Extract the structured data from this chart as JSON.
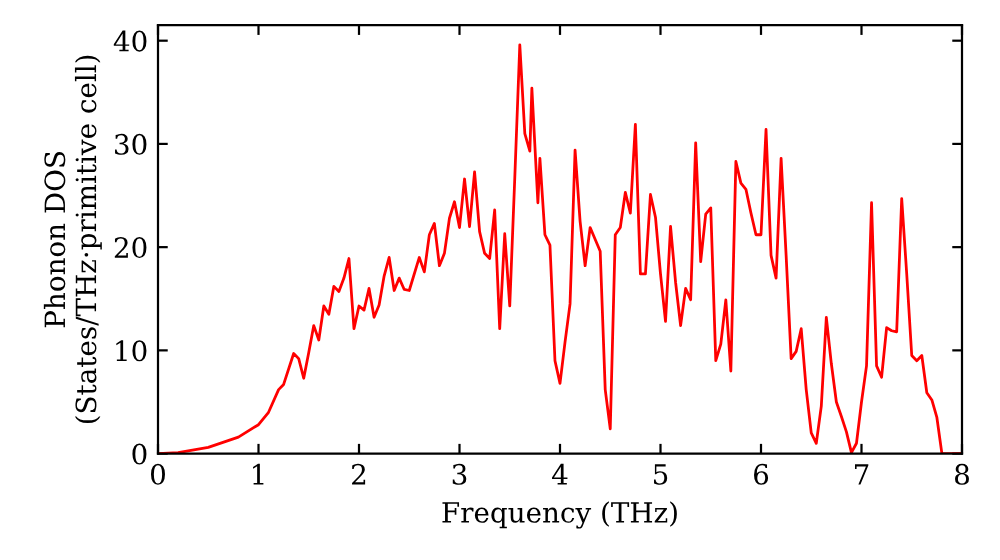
{
  "chart_data": {
    "type": "line",
    "xlabel": "Frequency (THz)",
    "ylabel": "Phonon DOS\n(States/THz·primitive cell)",
    "x": [
      0,
      0.2,
      0.5,
      0.8,
      1.0,
      1.1,
      1.2,
      1.25,
      1.35,
      1.4,
      1.45,
      1.5,
      1.55,
      1.6,
      1.65,
      1.7,
      1.75,
      1.8,
      1.85,
      1.9,
      1.95,
      2.0,
      2.05,
      2.1,
      2.15,
      2.2,
      2.25,
      2.3,
      2.35,
      2.4,
      2.45,
      2.5,
      2.6,
      2.65,
      2.7,
      2.75,
      2.8,
      2.85,
      2.9,
      2.95,
      3.0,
      3.05,
      3.1,
      3.15,
      3.2,
      3.25,
      3.3,
      3.35,
      3.4,
      3.45,
      3.5,
      3.55,
      3.6,
      3.65,
      3.7,
      3.72,
      3.78,
      3.8,
      3.85,
      3.9,
      3.95,
      4.0,
      4.05,
      4.1,
      4.15,
      4.2,
      4.25,
      4.3,
      4.4,
      4.45,
      4.5,
      4.55,
      4.6,
      4.65,
      4.7,
      4.75,
      4.8,
      4.85,
      4.9,
      4.95,
      5.0,
      5.05,
      5.1,
      5.15,
      5.2,
      5.25,
      5.3,
      5.35,
      5.4,
      5.45,
      5.5,
      5.55,
      5.6,
      5.65,
      5.7,
      5.75,
      5.8,
      5.85,
      5.9,
      5.95,
      6.0,
      6.05,
      6.1,
      6.15,
      6.2,
      6.25,
      6.3,
      6.35,
      6.4,
      6.45,
      6.5,
      6.55,
      6.6,
      6.65,
      6.7,
      6.75,
      6.8,
      6.85,
      6.9,
      6.95,
      7.0,
      7.05,
      7.1,
      7.15,
      7.2,
      7.25,
      7.3,
      7.35,
      7.4,
      7.45,
      7.5,
      7.55,
      7.6,
      7.65,
      7.7,
      7.75,
      7.8,
      8.0
    ],
    "series": [
      {
        "color": "#ff0000",
        "values": [
          0,
          0.1,
          0.6,
          1.6,
          2.8,
          4.0,
          6.2,
          6.7,
          9.7,
          9.2,
          7.3,
          9.8,
          12.4,
          11.0,
          14.3,
          13.5,
          16.2,
          15.7,
          17.0,
          18.9,
          12.1,
          14.3,
          13.9,
          16.0,
          13.2,
          14.4,
          17.2,
          19.0,
          15.8,
          17.0,
          15.9,
          15.8,
          19.0,
          17.6,
          21.2,
          22.3,
          18.2,
          19.4,
          22.8,
          24.4,
          21.9,
          26.6,
          22.0,
          27.3,
          21.5,
          19.4,
          18.9,
          23.6,
          12.1,
          21.3,
          14.3,
          26.7,
          39.6,
          31.0,
          29.3,
          35.4,
          24.3,
          28.6,
          21.2,
          20.2,
          9.0,
          6.8,
          10.8,
          14.5,
          29.4,
          22.5,
          18.2,
          21.9,
          19.6,
          6.2,
          2.4,
          21.2,
          21.9,
          25.3,
          23.3,
          31.9,
          17.4,
          17.4,
          25.1,
          22.9,
          17.4,
          12.8,
          22.0,
          16.6,
          12.4,
          16.0,
          14.9,
          30.1,
          18.6,
          23.2,
          23.8,
          9.0,
          10.6,
          14.9,
          8.0,
          28.3,
          26.2,
          25.6,
          23.3,
          21.2,
          21.2,
          31.4,
          19.2,
          17.0,
          28.6,
          19.2,
          9.2,
          9.9,
          12.1,
          6.2,
          2.0,
          1.0,
          4.6,
          13.2,
          8.7,
          5.0,
          3.6,
          2.1,
          0.1,
          1.0,
          5.0,
          8.5,
          24.3,
          8.5,
          7.4,
          12.2,
          11.9,
          11.8,
          24.7,
          17.4,
          9.5,
          9.0,
          9.5,
          5.9,
          5.2,
          3.5,
          0,
          0
        ]
      }
    ],
    "xlim": [
      0,
      8
    ],
    "ylim": [
      0,
      41.5
    ],
    "xticks": [
      0,
      1,
      2,
      3,
      4,
      5,
      6,
      7,
      8
    ],
    "yticks": [
      0,
      10,
      20,
      30,
      40
    ],
    "grid": false,
    "legend": false,
    "marker": "none",
    "line_style": "solid"
  }
}
